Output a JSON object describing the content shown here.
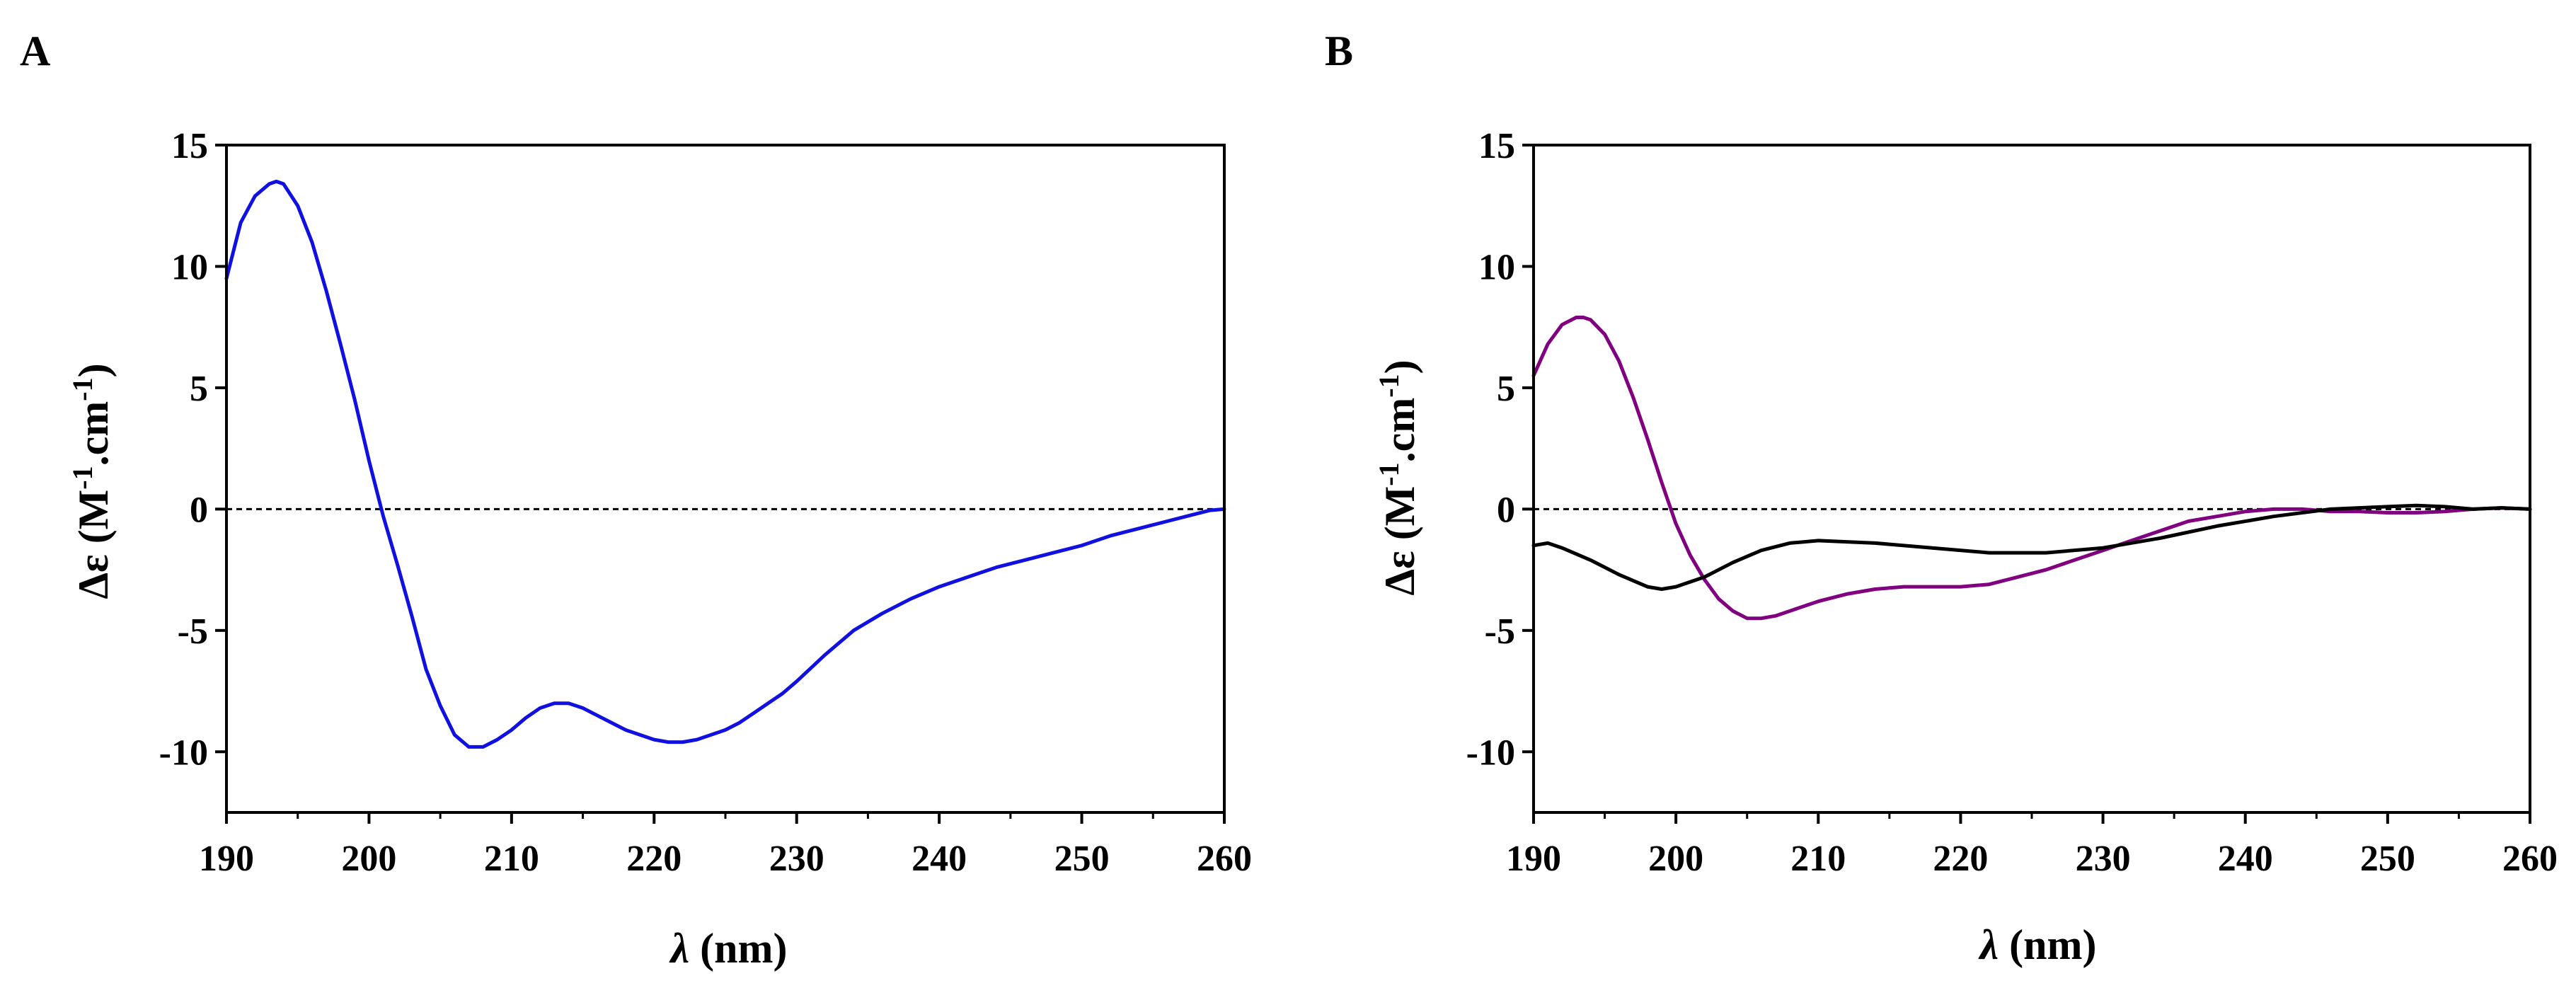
{
  "chart_data": [
    {
      "panel": "A",
      "type": "line",
      "xlabel": {
        "symbol": "λ",
        "unit": "(nm)"
      },
      "ylabel": {
        "prefix": "Δε (M",
        "sup1": "-1",
        "mid": ".cm",
        "sup2": "-1",
        "suffix": ")"
      },
      "xlim": [
        190,
        260
      ],
      "ylim": [
        -12.5,
        15
      ],
      "xticks": [
        190,
        200,
        210,
        220,
        230,
        240,
        250,
        260
      ],
      "yticks": [
        15,
        10,
        5,
        0,
        -5,
        -10
      ],
      "zero_line": true,
      "series": [
        {
          "name": "spectrum",
          "color": "#1010e0",
          "x": [
            190,
            191,
            192,
            193,
            193.5,
            194,
            195,
            196,
            197,
            198,
            199,
            200,
            201,
            202,
            203,
            204,
            205,
            206,
            207,
            208,
            209,
            210,
            211,
            212,
            213,
            214,
            215,
            216,
            217,
            218,
            219,
            220,
            221,
            222,
            223,
            224,
            225,
            226,
            227,
            228,
            229,
            230,
            232,
            234,
            236,
            238,
            240,
            242,
            244,
            246,
            248,
            250,
            252,
            254,
            256,
            258,
            259,
            260
          ],
          "y": [
            9.5,
            11.8,
            12.9,
            13.4,
            13.5,
            13.4,
            12.5,
            11.0,
            9.0,
            6.8,
            4.5,
            2.0,
            -0.3,
            -2.3,
            -4.4,
            -6.6,
            -8.1,
            -9.3,
            -9.8,
            -9.8,
            -9.5,
            -9.1,
            -8.6,
            -8.2,
            -8.0,
            -8.0,
            -8.2,
            -8.5,
            -8.8,
            -9.1,
            -9.3,
            -9.5,
            -9.6,
            -9.6,
            -9.5,
            -9.3,
            -9.1,
            -8.8,
            -8.4,
            -8.0,
            -7.6,
            -7.1,
            -6.0,
            -5.0,
            -4.3,
            -3.7,
            -3.2,
            -2.8,
            -2.4,
            -2.1,
            -1.8,
            -1.5,
            -1.1,
            -0.8,
            -0.5,
            -0.2,
            -0.05,
            0.0
          ]
        }
      ]
    },
    {
      "panel": "B",
      "type": "line",
      "xlabel": {
        "symbol": "λ",
        "unit": "(nm)"
      },
      "ylabel": {
        "prefix": "Δε (M",
        "sup1": "-1",
        "mid": ".cm",
        "sup2": "-1",
        "suffix": ")"
      },
      "xlim": [
        190,
        260
      ],
      "ylim": [
        -12.5,
        15
      ],
      "xticks": [
        190,
        200,
        210,
        220,
        230,
        240,
        250,
        260
      ],
      "yticks": [
        15,
        10,
        5,
        0,
        -5,
        -10
      ],
      "zero_line": true,
      "series": [
        {
          "name": "purple spectrum",
          "color": "#800080",
          "x": [
            190,
            191,
            192,
            193,
            193.5,
            194,
            195,
            196,
            197,
            198,
            199,
            200,
            201,
            202,
            203,
            204,
            205,
            206,
            207,
            208,
            209,
            210,
            212,
            214,
            216,
            218,
            220,
            222,
            224,
            226,
            228,
            230,
            232,
            234,
            236,
            238,
            240,
            242,
            244,
            246,
            248,
            250,
            252,
            254,
            256,
            258,
            260
          ],
          "y": [
            5.5,
            6.8,
            7.6,
            7.9,
            7.9,
            7.8,
            7.2,
            6.1,
            4.6,
            2.9,
            1.1,
            -0.6,
            -1.9,
            -2.9,
            -3.7,
            -4.2,
            -4.5,
            -4.5,
            -4.4,
            -4.2,
            -4.0,
            -3.8,
            -3.5,
            -3.3,
            -3.2,
            -3.2,
            -3.2,
            -3.1,
            -2.8,
            -2.5,
            -2.1,
            -1.7,
            -1.3,
            -0.9,
            -0.5,
            -0.3,
            -0.1,
            0.0,
            0.0,
            -0.1,
            -0.1,
            -0.15,
            -0.15,
            -0.1,
            0.0,
            0.05,
            0.0
          ]
        },
        {
          "name": "black spectrum",
          "color": "#000000",
          "x": [
            190,
            191,
            192,
            194,
            196,
            198,
            199,
            200,
            202,
            204,
            206,
            208,
            210,
            214,
            218,
            222,
            226,
            230,
            234,
            238,
            242,
            246,
            250,
            252,
            254,
            256,
            258,
            260
          ],
          "y": [
            -1.5,
            -1.4,
            -1.6,
            -2.1,
            -2.7,
            -3.2,
            -3.3,
            -3.2,
            -2.8,
            -2.2,
            -1.7,
            -1.4,
            -1.3,
            -1.4,
            -1.6,
            -1.8,
            -1.8,
            -1.6,
            -1.2,
            -0.7,
            -0.3,
            0.0,
            0.1,
            0.15,
            0.1,
            0.0,
            0.05,
            0.0
          ]
        }
      ]
    }
  ]
}
